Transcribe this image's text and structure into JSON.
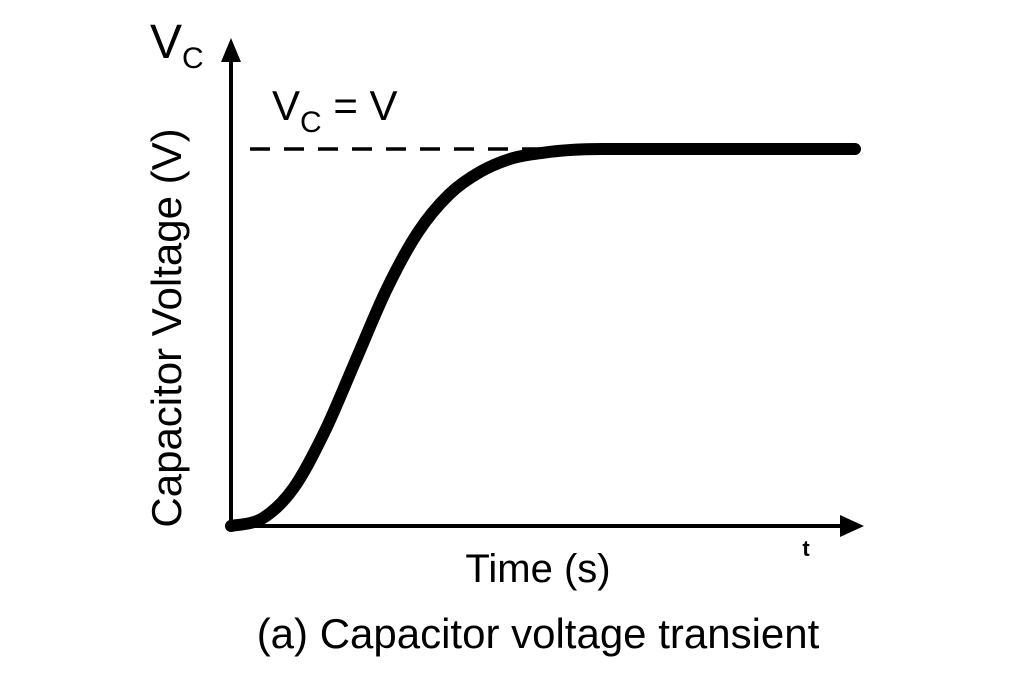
{
  "chart_data": {
    "type": "line",
    "title": "",
    "caption": "(a) Capacitor voltage transient",
    "xlabel": "Time (s)",
    "ylabel": "Capacitor Voltage (V)",
    "x_axis_end_label": "t",
    "y_axis_end_label": {
      "main": "V",
      "sub": "C"
    },
    "asymptote_label": {
      "main": "V",
      "sub": "C",
      "rest": " = V"
    },
    "grid": false,
    "xlim": [
      0,
      1
    ],
    "ylim": [
      0,
      1.05
    ],
    "asymptote_value": 1.0,
    "series": [
      {
        "x": [
          0,
          0.05,
          0.1,
          0.15,
          0.2,
          0.25,
          0.3,
          0.35,
          0.4,
          0.45,
          0.5,
          0.55,
          0.6,
          0.65,
          0.7,
          0.75,
          0.8,
          0.85,
          0.9,
          0.95,
          1.0
        ],
        "values": [
          0,
          0.02,
          0.1,
          0.25,
          0.44,
          0.63,
          0.78,
          0.88,
          0.94,
          0.975,
          0.99,
          0.998,
          1.0,
          1.0,
          1.0,
          1.0,
          1.0,
          1.0,
          1.0,
          1.0,
          1.0
        ]
      }
    ]
  }
}
